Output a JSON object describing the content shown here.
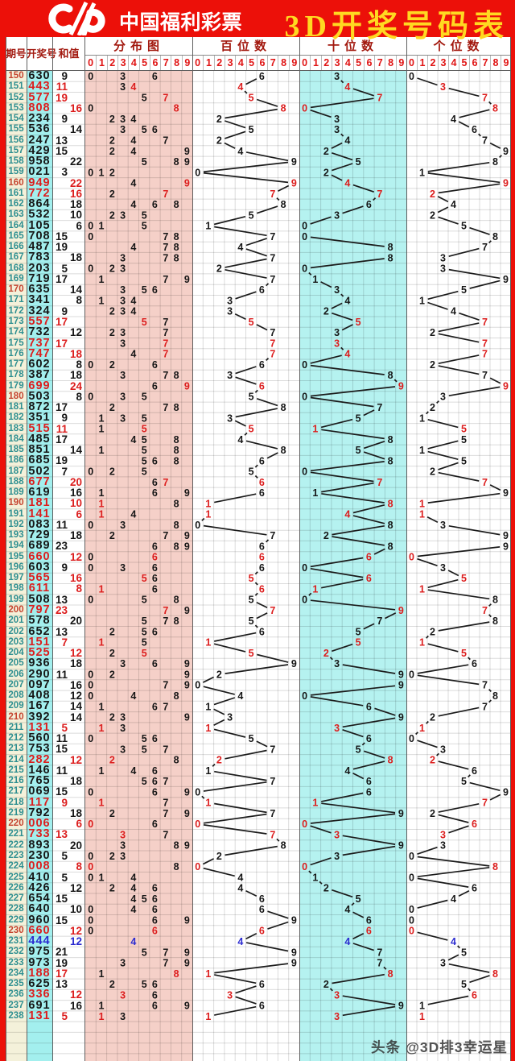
{
  "header": {
    "brand": "中国福利彩票",
    "title": "3D开奖号码表"
  },
  "table_header": {
    "period": "期号",
    "number": "开奖号",
    "sum": "和值",
    "dist": "分布图",
    "hundreds": "百位数",
    "tens": "十位数",
    "units": "个位数",
    "digits": [
      "0",
      "1",
      "2",
      "3",
      "4",
      "5",
      "6",
      "7",
      "8",
      "9"
    ]
  },
  "footer": {
    "watermark": "头条 @3D排3幸运星"
  },
  "colors": {
    "banner_red": "#ec1009",
    "title_yellow": "#ffd921",
    "header_label_red": "#a2180e",
    "scale_digit_red": "#e01414",
    "period_teal": "#2e8f90",
    "period_red": "#c5442f",
    "data_black": "#161616",
    "double_red": "#dc1d1d",
    "triple_blue": "#2b2bd0",
    "period_col_bg": "#f4f1da",
    "number_col_bg": "#a3efee",
    "dist_col_bg": "#f5d0c8",
    "tens_col_bg": "#b5f2f0"
  },
  "legend_rules": {
    "red_rows": "两码相同(组三)整行标红",
    "blue_rows": "三码相同(豹子)整行标蓝",
    "sum_layout": "和值为奇数靠左列、偶数靠右列",
    "period_red": "期号逢十标红"
  },
  "chart_data": {
    "type": "table",
    "title": "3D开奖号码表",
    "columns": [
      "期号",
      "开奖号",
      "和值"
    ],
    "digit_axes": [
      "分布图",
      "百位数",
      "十位数",
      "个位数"
    ],
    "axis_scale": [
      0,
      1,
      2,
      3,
      4,
      5,
      6,
      7,
      8,
      9
    ],
    "rows": [
      [
        "150",
        "630",
        9
      ],
      [
        "151",
        "443",
        11
      ],
      [
        "152",
        "577",
        19
      ],
      [
        "153",
        "808",
        16
      ],
      [
        "154",
        "234",
        9
      ],
      [
        "155",
        "536",
        14
      ],
      [
        "156",
        "247",
        13
      ],
      [
        "157",
        "429",
        15
      ],
      [
        "158",
        "958",
        22
      ],
      [
        "159",
        "021",
        3
      ],
      [
        "160",
        "949",
        22
      ],
      [
        "161",
        "772",
        16
      ],
      [
        "162",
        "864",
        18
      ],
      [
        "163",
        "532",
        10
      ],
      [
        "164",
        "105",
        6
      ],
      [
        "165",
        "708",
        15
      ],
      [
        "166",
        "487",
        19
      ],
      [
        "167",
        "783",
        18
      ],
      [
        "168",
        "203",
        5
      ],
      [
        "169",
        "719",
        17
      ],
      [
        "170",
        "635",
        14
      ],
      [
        "171",
        "341",
        8
      ],
      [
        "172",
        "324",
        9
      ],
      [
        "173",
        "557",
        17
      ],
      [
        "174",
        "732",
        12
      ],
      [
        "175",
        "737",
        17
      ],
      [
        "176",
        "747",
        18
      ],
      [
        "177",
        "602",
        8
      ],
      [
        "178",
        "387",
        18
      ],
      [
        "179",
        "699",
        24
      ],
      [
        "180",
        "503",
        8
      ],
      [
        "181",
        "872",
        17
      ],
      [
        "182",
        "351",
        9
      ],
      [
        "183",
        "515",
        11
      ],
      [
        "184",
        "485",
        17
      ],
      [
        "185",
        "851",
        14
      ],
      [
        "186",
        "685",
        19
      ],
      [
        "187",
        "502",
        7
      ],
      [
        "188",
        "677",
        20
      ],
      [
        "189",
        "619",
        16
      ],
      [
        "190",
        "181",
        10
      ],
      [
        "191",
        "141",
        6
      ],
      [
        "192",
        "083",
        11
      ],
      [
        "193",
        "729",
        18
      ],
      [
        "194",
        "689",
        23
      ],
      [
        "195",
        "660",
        12
      ],
      [
        "196",
        "603",
        9
      ],
      [
        "197",
        "565",
        16
      ],
      [
        "198",
        "611",
        8
      ],
      [
        "199",
        "508",
        13
      ],
      [
        "200",
        "797",
        23
      ],
      [
        "201",
        "578",
        20
      ],
      [
        "202",
        "652",
        13
      ],
      [
        "203",
        "151",
        7
      ],
      [
        "204",
        "525",
        12
      ],
      [
        "205",
        "936",
        18
      ],
      [
        "206",
        "290",
        11
      ],
      [
        "207",
        "097",
        16
      ],
      [
        "208",
        "408",
        12
      ],
      [
        "209",
        "167",
        14
      ],
      [
        "210",
        "392",
        14
      ],
      [
        "211",
        "131",
        5
      ],
      [
        "212",
        "560",
        11
      ],
      [
        "213",
        "753",
        15
      ],
      [
        "214",
        "282",
        12
      ],
      [
        "215",
        "146",
        11
      ],
      [
        "216",
        "765",
        18
      ],
      [
        "217",
        "069",
        15
      ],
      [
        "218",
        "117",
        9
      ],
      [
        "219",
        "792",
        18
      ],
      [
        "220",
        "006",
        6
      ],
      [
        "221",
        "733",
        13
      ],
      [
        "222",
        "893",
        20
      ],
      [
        "223",
        "230",
        5
      ],
      [
        "224",
        "008",
        8
      ],
      [
        "225",
        "410",
        5
      ],
      [
        "226",
        "426",
        12
      ],
      [
        "227",
        "654",
        15
      ],
      [
        "228",
        "640",
        10
      ],
      [
        "229",
        "960",
        15
      ],
      [
        "230",
        "660",
        12
      ],
      [
        "231",
        "444",
        12
      ],
      [
        "232",
        "975",
        21
      ],
      [
        "233",
        "973",
        19
      ],
      [
        "234",
        "188",
        17
      ],
      [
        "235",
        "625",
        13
      ],
      [
        "236",
        "336",
        12
      ],
      [
        "237",
        "691",
        16
      ],
      [
        "238",
        "131",
        5
      ]
    ]
  }
}
